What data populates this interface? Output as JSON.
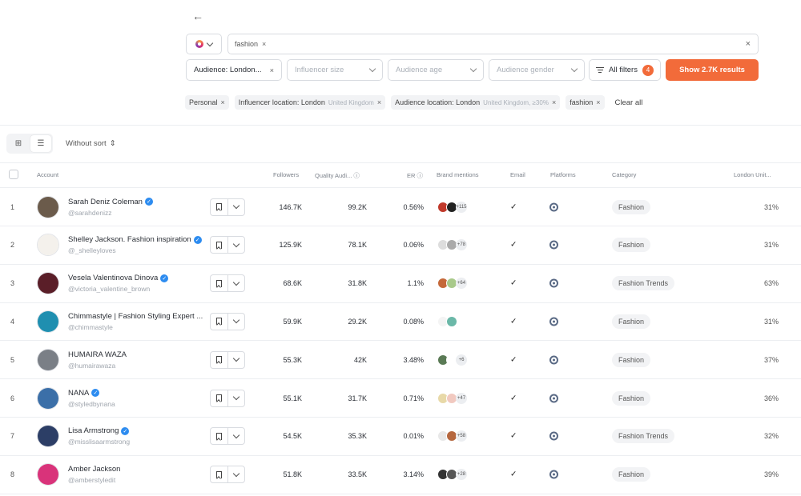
{
  "search": {
    "keyword": "fashion"
  },
  "filters": {
    "audience": "Audience: London...",
    "influencer_size": "Influencer size",
    "audience_age": "Audience age",
    "audience_gender": "Audience gender",
    "all_filters": "All filters",
    "all_filters_count": "4",
    "show_results": "Show 2.7K results"
  },
  "chips": [
    {
      "label": "Personal",
      "sub": ""
    },
    {
      "label": "Influencer location: London",
      "sub": "United Kingdom"
    },
    {
      "label": "Audience location: London",
      "sub": "United Kingdom, ≥30%"
    },
    {
      "label": "fashion",
      "sub": ""
    }
  ],
  "clear_all": "Clear all",
  "sort_label": "Without sort",
  "columns": {
    "account": "Account",
    "followers": "Followers",
    "quality": "Quality Audi...",
    "er": "ER",
    "mentions": "Brand mentions",
    "email": "Email",
    "platforms": "Platforms",
    "category": "Category",
    "london": "London Unit..."
  },
  "rows": [
    {
      "idx": "1",
      "name": "Sarah Deniz Coleman",
      "verified": true,
      "handle": "@sarahdenizz",
      "followers": "146.7K",
      "quality": "99.2K",
      "er": "0.56%",
      "mentions": "+115",
      "email": "✓",
      "category": "Fashion",
      "pct": "31%",
      "avatar": "#6b5b4b"
    },
    {
      "idx": "2",
      "name": "Shelley Jackson. Fashion inspiration",
      "verified": true,
      "handle": "@_shelleyloves",
      "followers": "125.9K",
      "quality": "78.1K",
      "er": "0.06%",
      "mentions": "+78",
      "email": "✓",
      "category": "Fashion",
      "pct": "31%",
      "avatar": "#f4f1ec"
    },
    {
      "idx": "3",
      "name": "Vesela Valentinova Dinova",
      "verified": true,
      "handle": "@victoria_valentine_brown",
      "followers": "68.6K",
      "quality": "31.8K",
      "er": "1.1%",
      "mentions": "+64",
      "email": "✓",
      "category": "Fashion Trends",
      "pct": "63%",
      "avatar": "#5a1e28"
    },
    {
      "idx": "4",
      "name": "Chimmastyle | Fashion Styling Expert ...",
      "verified": false,
      "handle": "@chimmastyle",
      "followers": "59.9K",
      "quality": "29.2K",
      "er": "0.08%",
      "mentions": "",
      "email": "✓",
      "category": "Fashion",
      "pct": "31%",
      "avatar": "#1f8fb0"
    },
    {
      "idx": "5",
      "name": "HUMAIRA WAZA",
      "verified": false,
      "handle": "@humairawaza",
      "followers": "55.3K",
      "quality": "42K",
      "er": "3.48%",
      "mentions": "+6",
      "email": "✓",
      "category": "Fashion",
      "pct": "37%",
      "avatar": "#7a7f86"
    },
    {
      "idx": "6",
      "name": "NANA",
      "verified": true,
      "handle": "@styledbynana",
      "followers": "55.1K",
      "quality": "31.7K",
      "er": "0.71%",
      "mentions": "+47",
      "email": "✓",
      "category": "Fashion",
      "pct": "36%",
      "avatar": "#3b6fa8"
    },
    {
      "idx": "7",
      "name": "Lisa Armstrong",
      "verified": true,
      "handle": "@misslisaarmstrong",
      "followers": "54.5K",
      "quality": "35.3K",
      "er": "0.01%",
      "mentions": "+58",
      "email": "✓",
      "category": "Fashion Trends",
      "pct": "32%",
      "avatar": "#2c3e66"
    },
    {
      "idx": "8",
      "name": "Amber Jackson",
      "verified": false,
      "handle": "@amberstyledit",
      "followers": "51.8K",
      "quality": "33.5K",
      "er": "3.14%",
      "mentions": "+28",
      "email": "✓",
      "category": "Fashion",
      "pct": "39%",
      "avatar": "#d9337a"
    }
  ]
}
